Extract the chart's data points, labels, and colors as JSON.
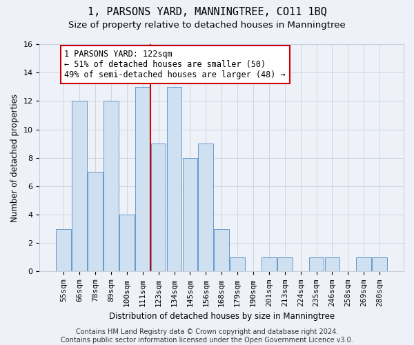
{
  "title": "1, PARSONS YARD, MANNINGTREE, CO11 1BQ",
  "subtitle": "Size of property relative to detached houses in Manningtree",
  "xlabel": "Distribution of detached houses by size in Manningtree",
  "ylabel": "Number of detached properties",
  "categories": [
    "55sqm",
    "66sqm",
    "78sqm",
    "89sqm",
    "100sqm",
    "111sqm",
    "123sqm",
    "134sqm",
    "145sqm",
    "156sqm",
    "168sqm",
    "179sqm",
    "190sqm",
    "201sqm",
    "213sqm",
    "224sqm",
    "235sqm",
    "246sqm",
    "258sqm",
    "269sqm",
    "280sqm"
  ],
  "values": [
    3,
    12,
    7,
    12,
    4,
    13,
    9,
    13,
    8,
    9,
    3,
    1,
    0,
    1,
    1,
    0,
    1,
    1,
    0,
    1,
    1
  ],
  "bar_color": "#cfe0f1",
  "bar_edge_color": "#6699cc",
  "vline_x": 6,
  "vline_color": "#cc0000",
  "annotation_text": "1 PARSONS YARD: 122sqm\n← 51% of detached houses are smaller (50)\n49% of semi-detached houses are larger (48) →",
  "annotation_box_color": "white",
  "annotation_box_edge": "#cc0000",
  "ylim": [
    0,
    16
  ],
  "yticks": [
    0,
    2,
    4,
    6,
    8,
    10,
    12,
    14,
    16
  ],
  "footer": "Contains HM Land Registry data © Crown copyright and database right 2024.\nContains public sector information licensed under the Open Government Licence v3.0.",
  "grid_color": "#c8d0dc",
  "bg_color": "#eef2f8",
  "title_fontsize": 11,
  "subtitle_fontsize": 9.5,
  "axis_label_fontsize": 8.5,
  "tick_fontsize": 8,
  "footer_fontsize": 7,
  "annotation_fontsize": 8.5
}
